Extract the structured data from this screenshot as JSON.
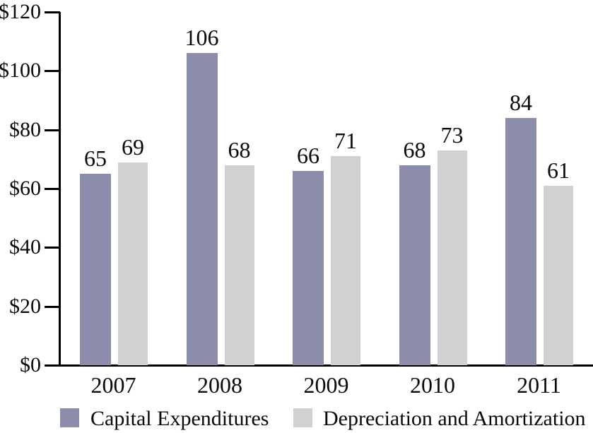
{
  "chart_data": {
    "type": "bar",
    "title": "",
    "xlabel": "",
    "ylabel": "",
    "categories": [
      "2007",
      "2008",
      "2009",
      "2010",
      "2011"
    ],
    "series": [
      {
        "name": "Capital Expenditures",
        "color": "#8b8dab",
        "values": [
          65,
          106,
          66,
          68,
          84
        ]
      },
      {
        "name": "Depreciation and Amortization",
        "color": "#d1d1d3",
        "values": [
          69,
          68,
          71,
          73,
          61
        ]
      }
    ],
    "y_axis": {
      "tick_values": [
        0,
        20,
        40,
        60,
        80,
        100,
        120
      ],
      "tick_labels": [
        "$0",
        "$20",
        "$40",
        "$60",
        "$80",
        "$100",
        "$120"
      ],
      "ylim": [
        0,
        120
      ],
      "currency_prefix": "$"
    },
    "value_labels_shown": true,
    "grid": false,
    "legend_position": "bottom"
  },
  "colors": {
    "background": "#ffffff",
    "axis": "#000000",
    "text": "#0a0a0a",
    "series1": "#8b8dab",
    "series2": "#d1d1d3"
  }
}
